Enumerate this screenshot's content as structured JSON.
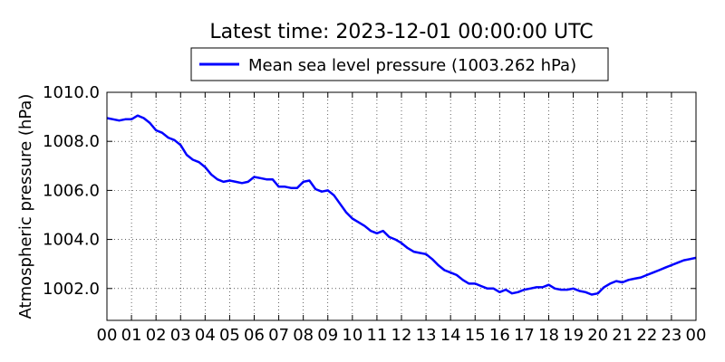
{
  "chart_data": {
    "type": "line",
    "title": "Latest time: 2023-12-01 00:00:00 UTC",
    "xlabel": "",
    "ylabel": "Atmospheric pressure (hPa)",
    "xlim": [
      0,
      24
    ],
    "ylim": [
      1000.7,
      1010.0
    ],
    "x_ticks": [
      0,
      1,
      2,
      3,
      4,
      5,
      6,
      7,
      8,
      9,
      10,
      11,
      12,
      13,
      14,
      15,
      16,
      17,
      18,
      19,
      20,
      21,
      22,
      23,
      24
    ],
    "x_tick_labels": [
      "00",
      "01",
      "02",
      "03",
      "04",
      "05",
      "06",
      "07",
      "08",
      "09",
      "10",
      "11",
      "12",
      "13",
      "14",
      "15",
      "16",
      "17",
      "18",
      "19",
      "20",
      "21",
      "22",
      "23",
      "00"
    ],
    "y_ticks": [
      1002.0,
      1004.0,
      1006.0,
      1008.0,
      1010.0
    ],
    "y_tick_labels": [
      "1002.0",
      "1004.0",
      "1006.0",
      "1008.0",
      "1010.0"
    ],
    "grid": true,
    "legend_position": "top-center",
    "series": [
      {
        "name": "Mean sea level pressure (1003.262 hPa)",
        "color": "#0000ff",
        "x": [
          0.0,
          0.25,
          0.5,
          0.75,
          1.0,
          1.25,
          1.5,
          1.75,
          2.0,
          2.25,
          2.5,
          2.75,
          3.0,
          3.25,
          3.5,
          3.75,
          4.0,
          4.25,
          4.5,
          4.75,
          5.0,
          5.25,
          5.5,
          5.75,
          6.0,
          6.25,
          6.5,
          6.75,
          7.0,
          7.25,
          7.5,
          7.75,
          8.0,
          8.25,
          8.5,
          8.75,
          9.0,
          9.25,
          9.5,
          9.75,
          10.0,
          10.25,
          10.5,
          10.75,
          11.0,
          11.25,
          11.5,
          11.75,
          12.0,
          12.25,
          12.5,
          12.75,
          13.0,
          13.25,
          13.5,
          13.75,
          14.0,
          14.25,
          14.5,
          14.75,
          15.0,
          15.25,
          15.5,
          15.75,
          16.0,
          16.25,
          16.5,
          16.75,
          17.0,
          17.25,
          17.5,
          17.75,
          18.0,
          18.25,
          18.5,
          18.75,
          19.0,
          19.25,
          19.5,
          19.75,
          20.0,
          20.25,
          20.5,
          20.75,
          21.0,
          21.25,
          21.5,
          21.75,
          22.0,
          22.25,
          22.5,
          22.75,
          23.0,
          23.25,
          23.5,
          23.75,
          24.0
        ],
        "y": [
          1008.95,
          1008.9,
          1008.85,
          1008.9,
          1008.9,
          1009.05,
          1008.95,
          1008.75,
          1008.45,
          1008.35,
          1008.15,
          1008.05,
          1007.85,
          1007.45,
          1007.25,
          1007.15,
          1006.95,
          1006.65,
          1006.45,
          1006.35,
          1006.4,
          1006.35,
          1006.3,
          1006.35,
          1006.55,
          1006.5,
          1006.45,
          1006.45,
          1006.15,
          1006.15,
          1006.1,
          1006.1,
          1006.35,
          1006.4,
          1006.05,
          1005.95,
          1006.0,
          1005.8,
          1005.45,
          1005.1,
          1004.85,
          1004.7,
          1004.55,
          1004.35,
          1004.25,
          1004.35,
          1004.1,
          1004.0,
          1003.85,
          1003.65,
          1003.5,
          1003.45,
          1003.4,
          1003.2,
          1002.95,
          1002.75,
          1002.65,
          1002.55,
          1002.35,
          1002.2,
          1002.2,
          1002.1,
          1002.0,
          1002.0,
          1001.85,
          1001.95,
          1001.8,
          1001.85,
          1001.95,
          1002.0,
          1002.05,
          1002.05,
          1002.15,
          1002.0,
          1001.95,
          1001.95,
          1002.0,
          1001.9,
          1001.85,
          1001.75,
          1001.8,
          1002.05,
          1002.2,
          1002.3,
          1002.25,
          1002.35,
          1002.4,
          1002.45,
          1002.55,
          1002.65,
          1002.75,
          1002.85,
          1002.95,
          1003.05,
          1003.15,
          1003.2,
          1003.25
        ]
      }
    ]
  }
}
